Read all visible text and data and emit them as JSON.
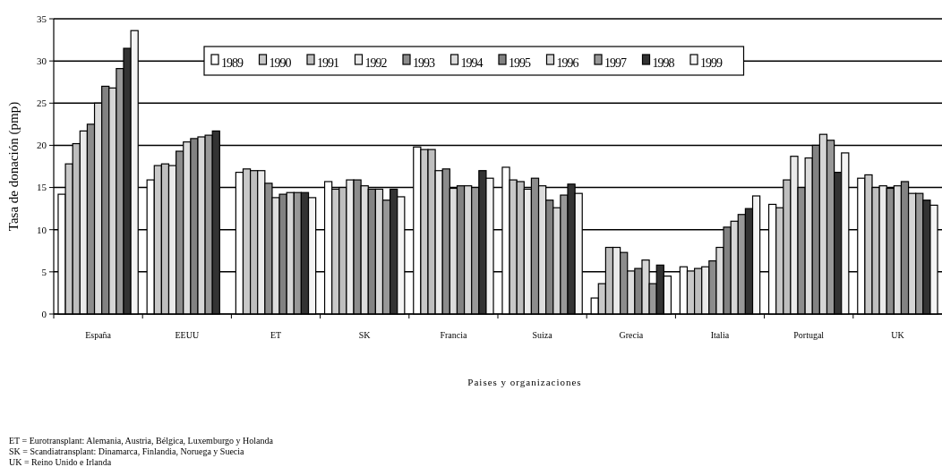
{
  "chart_data": {
    "type": "bar",
    "ylabel": "Tasa de donación (pmp)",
    "xlabel": "Paises y organizaciones",
    "categories": [
      "España",
      "EEUU",
      "ET",
      "SK",
      "Francia",
      "Suiza",
      "Grecia",
      "Italia",
      "Portugal",
      "UK"
    ],
    "series": [
      {
        "name": "1989",
        "color": "#ffffff",
        "values": [
          14.2,
          15.9,
          16.8,
          15.7,
          19.8,
          17.4,
          1.9,
          5.6,
          13.0,
          16.1
        ]
      },
      {
        "name": "1990",
        "color": "#c8c8c8",
        "values": [
          17.8,
          17.6,
          17.2,
          14.8,
          19.5,
          15.9,
          3.6,
          5.1,
          12.6,
          16.5
        ]
      },
      {
        "name": "1991",
        "color": "#bebebe",
        "values": [
          20.2,
          17.8,
          17.0,
          15.0,
          19.5,
          15.7,
          7.9,
          5.4,
          15.9,
          15.0
        ]
      },
      {
        "name": "1992",
        "color": "#eaeaea",
        "values": [
          21.7,
          17.6,
          17.0,
          15.9,
          17.0,
          14.8,
          7.9,
          5.6,
          18.7,
          15.2
        ]
      },
      {
        "name": "1993",
        "color": "#8c8c8c",
        "values": [
          22.5,
          19.3,
          15.5,
          15.9,
          17.2,
          16.1,
          7.3,
          6.3,
          15.0,
          14.9
        ]
      },
      {
        "name": "1994",
        "color": "#dcdcdc",
        "values": [
          25.0,
          20.4,
          13.8,
          15.2,
          14.9,
          15.2,
          5.1,
          7.9,
          18.5,
          15.2
        ]
      },
      {
        "name": "1995",
        "color": "#828282",
        "values": [
          27.0,
          20.8,
          14.2,
          14.8,
          15.2,
          13.5,
          5.4,
          10.3,
          20.0,
          15.7
        ]
      },
      {
        "name": "1996",
        "color": "#d6d6d6",
        "values": [
          26.8,
          21.0,
          14.4,
          14.8,
          15.2,
          12.6,
          6.4,
          11.0,
          21.3,
          14.3
        ]
      },
      {
        "name": "1997",
        "color": "#989898",
        "values": [
          29.1,
          21.2,
          14.4,
          13.5,
          15.0,
          14.1,
          3.6,
          11.8,
          20.6,
          14.3
        ]
      },
      {
        "name": "1998",
        "color": "#333333",
        "values": [
          31.5,
          21.7,
          14.4,
          14.8,
          17.0,
          15.4,
          5.8,
          12.5,
          16.8,
          13.5
        ]
      },
      {
        "name": "1999",
        "color": "#f4f4f4",
        "values": [
          33.6,
          null,
          13.8,
          13.9,
          16.1,
          14.3,
          4.5,
          14.0,
          19.1,
          12.9
        ]
      }
    ],
    "ylim": [
      0,
      35
    ],
    "yticks": [
      0,
      5,
      10,
      15,
      20,
      25,
      30,
      35
    ],
    "grid": "y",
    "legend": "top",
    "annotations": [
      "ET = Eurotransplant: Alemania, Austria, Bélgica, Luxemburgo y Holanda",
      "SK = Scandiatransplant: Dinamarca, Finlandia, Noruega y Suecia",
      "UK = Reino Unido e Irlanda"
    ]
  }
}
